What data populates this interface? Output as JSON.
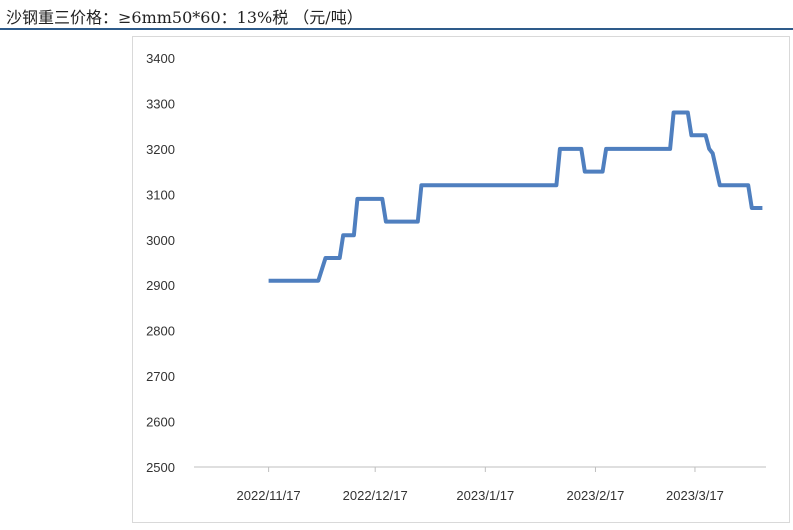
{
  "title": "沙钢重三价格：≥6mm50*60：13%税 （元/吨）",
  "colors": {
    "line": "#4f7fbf",
    "axis": "#bfbfbf",
    "header_rule": "#2e5b8a"
  },
  "chart_data": {
    "type": "line",
    "title": "沙钢重三价格：≥6mm50*60：13%税 （元/吨）",
    "xlabel": "",
    "ylabel": "",
    "ylim": [
      2500,
      3400
    ],
    "yticks": [
      2500,
      2600,
      2700,
      2800,
      2900,
      3000,
      3100,
      3200,
      3300,
      3400
    ],
    "xlim": [
      "2022-10-27",
      "2023-04-06"
    ],
    "xticks": [
      {
        "date": "2022-11-17",
        "label": "2022/11/17"
      },
      {
        "date": "2022-12-17",
        "label": "2022/12/17"
      },
      {
        "date": "2023-01-17",
        "label": "2023/1/17"
      },
      {
        "date": "2023-02-17",
        "label": "2023/2/17"
      },
      {
        "date": "2023-03-17",
        "label": "2023/3/17"
      }
    ],
    "grid": false,
    "series": [
      {
        "name": "",
        "points": [
          [
            "2022-11-17",
            2910
          ],
          [
            "2022-12-01",
            2910
          ],
          [
            "2022-12-03",
            2960
          ],
          [
            "2022-12-07",
            2960
          ],
          [
            "2022-12-08",
            3010
          ],
          [
            "2022-12-11",
            3010
          ],
          [
            "2022-12-12",
            3090
          ],
          [
            "2022-12-19",
            3090
          ],
          [
            "2022-12-20",
            3040
          ],
          [
            "2022-12-29",
            3040
          ],
          [
            "2022-12-30",
            3120
          ],
          [
            "2023-02-06",
            3120
          ],
          [
            "2023-02-07",
            3200
          ],
          [
            "2023-02-13",
            3200
          ],
          [
            "2023-02-14",
            3150
          ],
          [
            "2023-02-19",
            3150
          ],
          [
            "2023-02-20",
            3200
          ],
          [
            "2023-03-10",
            3200
          ],
          [
            "2023-03-11",
            3280
          ],
          [
            "2023-03-15",
            3280
          ],
          [
            "2023-03-16",
            3230
          ],
          [
            "2023-03-20",
            3230
          ],
          [
            "2023-03-21",
            3200
          ],
          [
            "2023-03-22",
            3190
          ],
          [
            "2023-03-24",
            3120
          ],
          [
            "2023-04-01",
            3120
          ],
          [
            "2023-04-02",
            3070
          ],
          [
            "2023-04-05",
            3070
          ]
        ]
      }
    ]
  }
}
